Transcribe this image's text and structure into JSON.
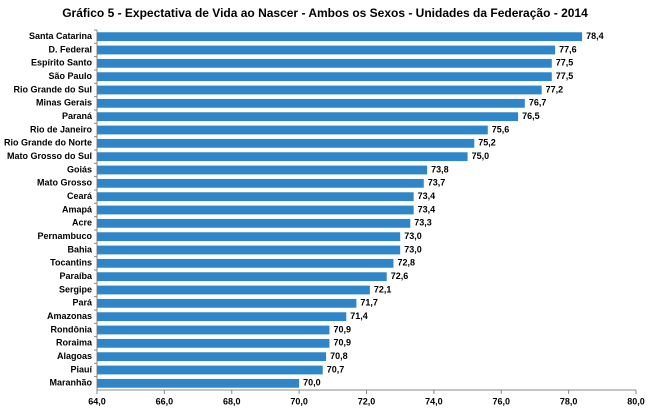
{
  "chart_data": {
    "type": "bar",
    "orientation": "horizontal",
    "title": "Gráfico 5 - Expectativa de Vida ao Nascer - Ambos os Sexos -  Unidades da Federação  - 2014",
    "categories": [
      "Santa Catarina",
      "D. Federal",
      "Espírito Santo",
      "São Paulo",
      "Rio Grande do Sul",
      "Minas Gerais",
      "Paraná",
      "Rio de Janeiro",
      "Rio Grande do Norte",
      "Mato Grosso do Sul",
      "Goiás",
      "Mato Grosso",
      "Ceará",
      "Amapá",
      "Acre",
      "Pernambuco",
      "Bahia",
      "Tocantins",
      "Paraíba",
      "Sergipe",
      "Pará",
      "Amazonas",
      "Rondônia",
      "Roraima",
      "Alagoas",
      "Piauí",
      "Maranhão"
    ],
    "values": [
      78.4,
      77.6,
      77.5,
      77.5,
      77.2,
      76.7,
      76.5,
      75.6,
      75.2,
      75.0,
      73.8,
      73.7,
      73.4,
      73.4,
      73.3,
      73.0,
      73.0,
      72.8,
      72.6,
      72.1,
      71.7,
      71.4,
      70.9,
      70.9,
      70.8,
      70.7,
      70.0
    ],
    "value_labels": [
      "78,4",
      "77,6",
      "77,5",
      "77,5",
      "77,2",
      "76,7",
      "76,5",
      "75,6",
      "75,2",
      "75,0",
      "73,8",
      "73,7",
      "73,4",
      "73,4",
      "73,3",
      "73,0",
      "73,0",
      "72,8",
      "72,6",
      "72,1",
      "71,7",
      "71,4",
      "70,9",
      "70,9",
      "70,8",
      "70,7",
      "70,0"
    ],
    "color": "#2e86c8",
    "xlim": [
      64,
      80
    ],
    "xticks": [
      {
        "value": 64,
        "label": "64,0"
      },
      {
        "value": 66,
        "label": "66,0"
      },
      {
        "value": 68,
        "label": "68,0"
      },
      {
        "value": 70,
        "label": "70,0"
      },
      {
        "value": 72,
        "label": "72,0"
      },
      {
        "value": 74,
        "label": "74,0"
      },
      {
        "value": 76,
        "label": "76,0"
      },
      {
        "value": 78,
        "label": "78,0"
      },
      {
        "value": 80,
        "label": "80,0"
      }
    ],
    "grid": false
  }
}
